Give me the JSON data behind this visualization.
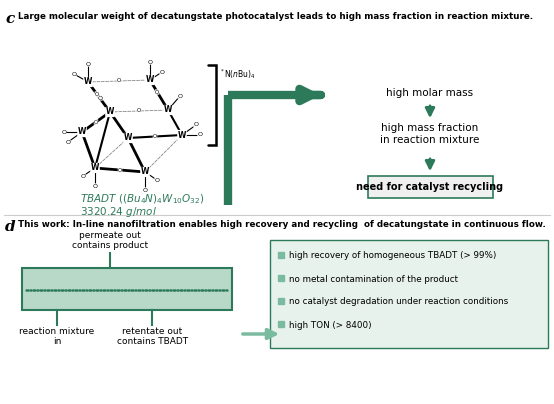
{
  "bg_color": "#ffffff",
  "panel_c_label": "c",
  "panel_d_label": "d",
  "panel_c_title": "Large molecular weight of decatungstate photocatalyst leads to high mass fraction in reaction mixture.",
  "panel_d_title": "This work: In-line nanofiltration enables high recovery and recycling  of decatungstate in continuous flow.",
  "green": "#2d7a5a",
  "light_green": "#7abba0",
  "box_fill_d": "#dceee6",
  "membrane_fill": "#b8d8c8",
  "right_box_fill": "#e8f2ec",
  "right_box_texts": [
    "high recovery of homogeneous TBADT (> 99%)",
    "no metal contamination of the product",
    "no catalyst degradation under reaction conditions",
    "high TON (> 8400)"
  ],
  "recycle_box_fill": "#f0f0f0",
  "recycle_box_edge": "#2d7a5a"
}
